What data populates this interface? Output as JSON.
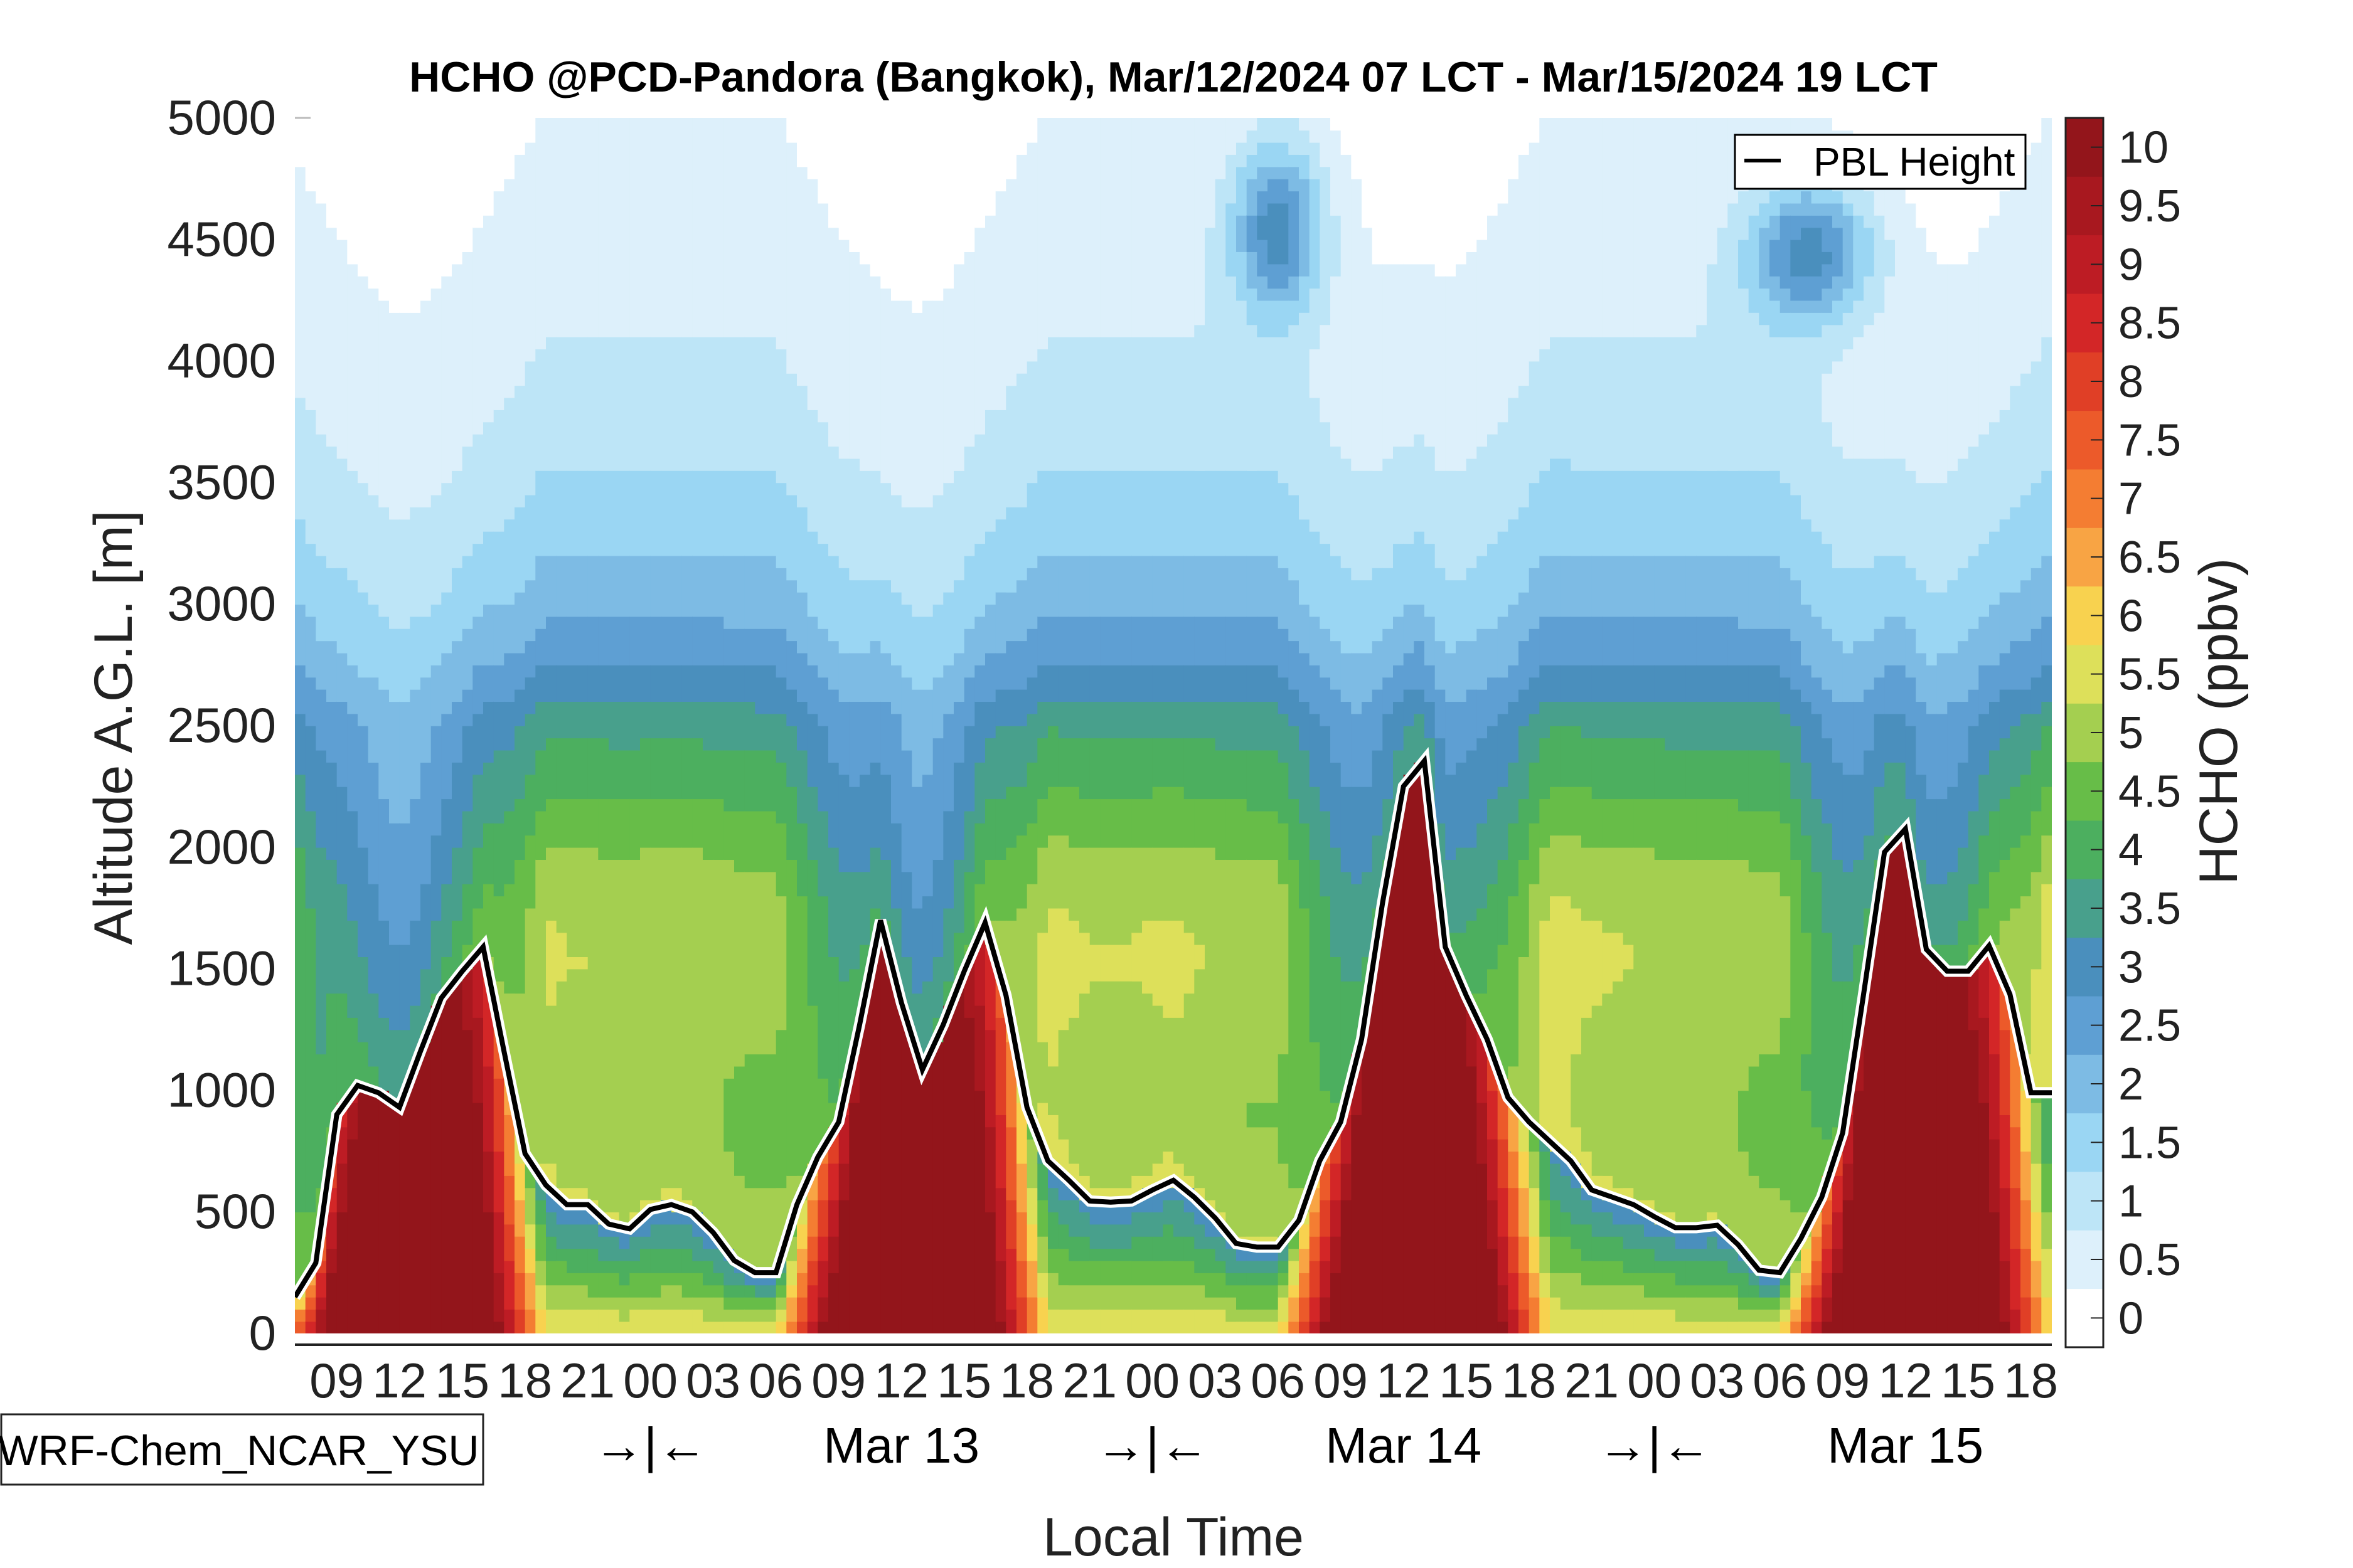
{
  "chart_data": {
    "type": "heatmap",
    "subtype": "filled-contour time-altitude cross-section with line overlay",
    "title": "HCHO @PCD-Pandora (Bangkok), Mar/12/2024 07 LCT - Mar/15/2024 19 LCT",
    "xlabel": "Local Time",
    "ylabel": "Altitude A.G.L. [m]",
    "ylim": [
      0,
      5000
    ],
    "yticks": [
      0,
      500,
      1000,
      1500,
      2000,
      2500,
      3000,
      3500,
      4000,
      4500,
      5000
    ],
    "x_start_hour_lct": 7,
    "x_hours_span": 84,
    "xtick_labels": [
      "09",
      "12",
      "15",
      "18",
      "21",
      "00",
      "03",
      "06",
      "09",
      "12",
      "15",
      "18",
      "21",
      "00",
      "03",
      "06",
      "09",
      "12",
      "15",
      "18",
      "21",
      "00",
      "03",
      "06",
      "09",
      "12",
      "15",
      "18"
    ],
    "xtick_hours": [
      2,
      5,
      8,
      11,
      14,
      17,
      20,
      23,
      26,
      29,
      32,
      35,
      38,
      41,
      44,
      47,
      50,
      53,
      56,
      59,
      62,
      65,
      68,
      71,
      74,
      77,
      80,
      83
    ],
    "day_labels": [
      {
        "text": "→|←",
        "hour": 17
      },
      {
        "text": "Mar 13",
        "hour": 29
      },
      {
        "text": "→|←",
        "hour": 41
      },
      {
        "text": "Mar 14",
        "hour": 53
      },
      {
        "text": "→|←",
        "hour": 65
      },
      {
        "text": "Mar 15",
        "hour": 77
      }
    ],
    "model_label": "WRF-Chem_NCAR_YSU",
    "colorbar": {
      "label": "HCHO (ppbv)",
      "levels": [
        0,
        0.5,
        1,
        1.5,
        2,
        2.5,
        3,
        3.5,
        4,
        4.5,
        5,
        5.5,
        6,
        6.5,
        7,
        7.5,
        8,
        8.5,
        9,
        9.5,
        10
      ],
      "tick_labels": [
        "0",
        "0.5",
        "1",
        "1.5",
        "2",
        "2.5",
        "3",
        "3.5",
        "4",
        "4.5",
        "5",
        "5.5",
        "6",
        "6.5",
        "7",
        "7.5",
        "8",
        "8.5",
        "9",
        "9.5",
        "10"
      ],
      "colors": [
        "#ffffff",
        "#ddf0fb",
        "#bde5f7",
        "#9ad6f3",
        "#7dbbe4",
        "#5e9fd3",
        "#4a8fbd",
        "#48a08c",
        "#4caf5f",
        "#67bd48",
        "#a4cf50",
        "#dde05a",
        "#f8d24f",
        "#f8a444",
        "#f47d32",
        "#ec5a2a",
        "#e03f26",
        "#d32627",
        "#bd1c24",
        "#a8181f",
        "#93151b"
      ]
    },
    "ground_band_color": "#b3b3b3",
    "legend": {
      "entries": [
        "PBL Height"
      ],
      "position": "top-right"
    },
    "series": [
      {
        "name": "PBL Height",
        "unit": "m",
        "hour_offsets_from_start": [
          0,
          1,
          2,
          3,
          4,
          5,
          6,
          7,
          8,
          9,
          10,
          11,
          12,
          13,
          14,
          15,
          16,
          17,
          18,
          19,
          20,
          21,
          22,
          23,
          24,
          25,
          26,
          27,
          28,
          29,
          30,
          31,
          32,
          33,
          34,
          35,
          36,
          37,
          38,
          39,
          40,
          41,
          42,
          43,
          44,
          45,
          46,
          47,
          48,
          49,
          50,
          51,
          52,
          53,
          54,
          55,
          56,
          57,
          58,
          59,
          60,
          61,
          62,
          63,
          64,
          65,
          66,
          67,
          68,
          69,
          70,
          71,
          72,
          73,
          74,
          75,
          76,
          77,
          78,
          79,
          80,
          81,
          82,
          83,
          84
        ],
        "values": [
          150,
          290,
          900,
          1020,
          990,
          930,
          1160,
          1380,
          1490,
          1590,
          1160,
          740,
          610,
          530,
          530,
          450,
          430,
          510,
          530,
          500,
          415,
          300,
          250,
          250,
          530,
          725,
          870,
          1270,
          1700,
          1360,
          1085,
          1270,
          1490,
          1690,
          1390,
          930,
          710,
          630,
          545,
          540,
          545,
          590,
          630,
          560,
          475,
          370,
          355,
          355,
          465,
          710,
          870,
          1210,
          1770,
          2250,
          2355,
          1590,
          1390,
          1210,
          970,
          870,
          790,
          710,
          590,
          560,
          530,
          480,
          435,
          435,
          445,
          365,
          260,
          250,
          390,
          560,
          825,
          1395,
          1980,
          2075,
          1580,
          1490,
          1490,
          1595,
          1395,
          990,
          990
        ]
      }
    ],
    "hcho_field_features": [
      {
        "description": "daytime near-surface maxima >10 ppbv",
        "days": [
          "Mar 12",
          "Mar 13",
          "Mar 14",
          "Mar 15"
        ]
      },
      {
        "description": "upper-level 2-3 ppbv patches near 4500 m",
        "hours_approx": [
          47,
          72
        ]
      },
      {
        "description": "nocturnal residual layer 3.5-6 ppbv between 1000-2500 m",
        "days": [
          "Mar 13 night",
          "Mar 14 night"
        ]
      }
    ]
  }
}
